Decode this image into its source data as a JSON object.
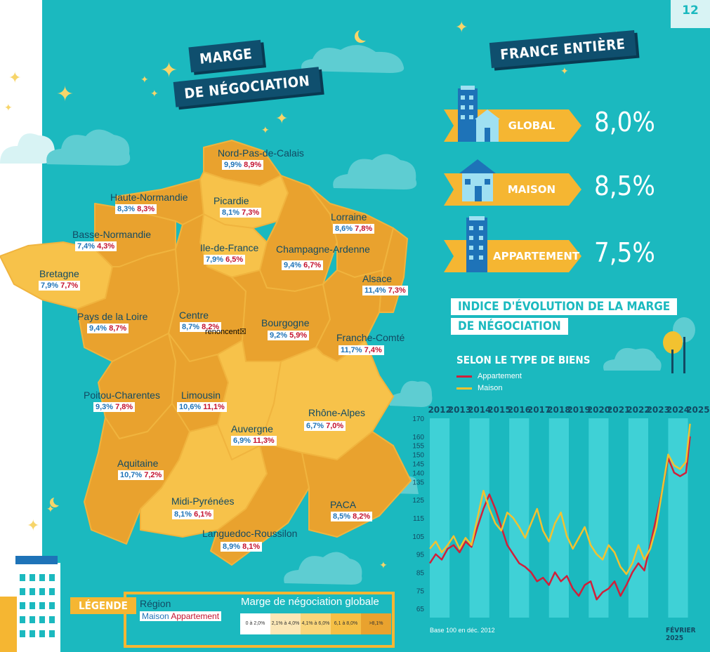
{
  "page_number": "12",
  "header": {
    "title_line1": "MARGE",
    "title_line2": "DE NÉGOCIATION",
    "france_title": "FRANCE ENTIÈRE"
  },
  "regions": [
    {
      "name": "Nord-Pas-de-Calais",
      "maison": "9,9%",
      "appartement": "8,9%"
    },
    {
      "name": "Haute-Normandie",
      "maison": "8,3%",
      "appartement": "8,3%"
    },
    {
      "name": "Picardie",
      "maison": "8,1%",
      "appartement": "7,3%"
    },
    {
      "name": "Lorraine",
      "maison": "8,6%",
      "appartement": "7,8%"
    },
    {
      "name": "Basse-Normandie",
      "maison": "7,4%",
      "appartement": "4,3%"
    },
    {
      "name": "Ile-de-France",
      "maison": "7,9%",
      "appartement": "6,5%"
    },
    {
      "name": "Champagne-Ardenne",
      "maison": "9,4%",
      "appartement": "6,7%"
    },
    {
      "name": "Bretagne",
      "maison": "7,9%",
      "appartement": "7,7%"
    },
    {
      "name": "Alsace",
      "maison": "11,4%",
      "appartement": "7,3%"
    },
    {
      "name": "Pays de la Loire",
      "maison": "9,4%",
      "appartement": "8,7%"
    },
    {
      "name": "Centre",
      "maison": "8,7%",
      "appartement": "8,2%"
    },
    {
      "name": "Bourgogne",
      "maison": "9,2%",
      "appartement": "5,9%"
    },
    {
      "name": "Franche-Comté",
      "maison": "11,7%",
      "appartement": "7,4%"
    },
    {
      "name": "Poitou-Charentes",
      "maison": "9,3%",
      "appartement": "7,8%"
    },
    {
      "name": "Limousin",
      "maison": "10,6%",
      "appartement": "11,1%"
    },
    {
      "name": "Rhône-Alpes",
      "maison": "6,7%",
      "appartement": "7,0%"
    },
    {
      "name": "Auvergne",
      "maison": "6,9%",
      "appartement": "11,3%"
    },
    {
      "name": "Aquitaine",
      "maison": "10,7%",
      "appartement": "7,2%"
    },
    {
      "name": "Midi-Pyrénées",
      "maison": "8,1%",
      "appartement": "6,1%"
    },
    {
      "name": "PACA",
      "maison": "8,5%",
      "appartement": "8,2%"
    },
    {
      "name": "Languedoc-Roussilon",
      "maison": "8,9%",
      "appartement": "8,1%"
    }
  ],
  "glitch_text": "renoncent☒",
  "france": [
    {
      "label": "GLOBAL",
      "value": "8,0%"
    },
    {
      "label": "MAISON",
      "value": "8,5%"
    },
    {
      "label": "APPARTEMENT",
      "value": "7,5%"
    }
  ],
  "legend": {
    "tag": "LÉGENDE",
    "region": "Région",
    "maison": "Maison",
    "appartement": "Appartement",
    "scale_title": "Marge de négociation globale",
    "scale": [
      {
        "label": "0 à 2,0%",
        "color": "#ffffff"
      },
      {
        "label": "2,1% à 4,0%",
        "color": "#fbe7b6"
      },
      {
        "label": "4,1% à 6,0%",
        "color": "#f9d57a"
      },
      {
        "label": "6,1 à 8,0%",
        "color": "#f5bf45"
      },
      {
        "label": ">8,1%",
        "color": "#e9a22e"
      }
    ]
  },
  "chart_data": {
    "type": "line",
    "title_line1": "INDICE D'ÉVOLUTION DE LA MARGE",
    "title_line2": "DE NÉGOCIATION",
    "subtitle": "SELON LE TYPE DE BIENS",
    "note": "Base 100 en déc. 2012",
    "date": "FÉVRIER 2025",
    "years": [
      "2012",
      "2013",
      "2014",
      "2015",
      "2016",
      "2017",
      "2018",
      "2019",
      "2020",
      "2021",
      "2022",
      "2023",
      "2024",
      "2025"
    ],
    "ylim": [
      60,
      170
    ],
    "yticks": [
      170,
      160,
      155,
      150,
      145,
      140,
      135,
      125,
      115,
      105,
      95,
      85,
      75,
      65
    ],
    "colors": {
      "Appartement": "#d0203a",
      "Maison": "#f2c230"
    },
    "series": [
      {
        "name": "Appartement",
        "x": [
          2012.0,
          2012.3,
          2012.6,
          2012.9,
          2013.2,
          2013.5,
          2013.8,
          2014.1,
          2014.4,
          2014.7,
          2015.0,
          2015.3,
          2015.6,
          2015.9,
          2016.2,
          2016.5,
          2016.8,
          2017.1,
          2017.4,
          2017.7,
          2018.0,
          2018.3,
          2018.6,
          2018.9,
          2019.2,
          2019.5,
          2019.8,
          2020.1,
          2020.4,
          2020.7,
          2021.0,
          2021.3,
          2021.6,
          2021.9,
          2022.2,
          2022.5,
          2022.8,
          2023.1,
          2023.4,
          2023.7,
          2024.0,
          2024.3,
          2024.6,
          2024.9,
          2025.1
        ],
        "y": [
          90,
          95,
          92,
          98,
          100,
          96,
          102,
          99,
          110,
          120,
          128,
          120,
          110,
          100,
          95,
          90,
          88,
          85,
          80,
          82,
          78,
          85,
          80,
          83,
          76,
          72,
          78,
          80,
          70,
          74,
          76,
          80,
          72,
          78,
          85,
          90,
          86,
          100,
          115,
          130,
          148,
          140,
          138,
          140,
          160
        ]
      },
      {
        "name": "Maison",
        "x": [
          2012.0,
          2012.3,
          2012.6,
          2012.9,
          2013.2,
          2013.5,
          2013.8,
          2014.1,
          2014.4,
          2014.7,
          2015.0,
          2015.3,
          2015.6,
          2015.9,
          2016.2,
          2016.5,
          2016.8,
          2017.1,
          2017.4,
          2017.7,
          2018.0,
          2018.3,
          2018.6,
          2018.9,
          2019.2,
          2019.5,
          2019.8,
          2020.1,
          2020.4,
          2020.7,
          2021.0,
          2021.3,
          2021.6,
          2021.9,
          2022.2,
          2022.5,
          2022.8,
          2023.1,
          2023.4,
          2023.7,
          2024.0,
          2024.3,
          2024.6,
          2024.9,
          2025.1
        ],
        "y": [
          98,
          102,
          96,
          100,
          105,
          98,
          104,
          100,
          115,
          130,
          120,
          112,
          108,
          118,
          115,
          110,
          104,
          112,
          120,
          108,
          102,
          112,
          118,
          105,
          98,
          104,
          110,
          100,
          95,
          92,
          100,
          96,
          88,
          84,
          90,
          100,
          92,
          98,
          110,
          130,
          150,
          144,
          142,
          146,
          167
        ]
      }
    ]
  }
}
